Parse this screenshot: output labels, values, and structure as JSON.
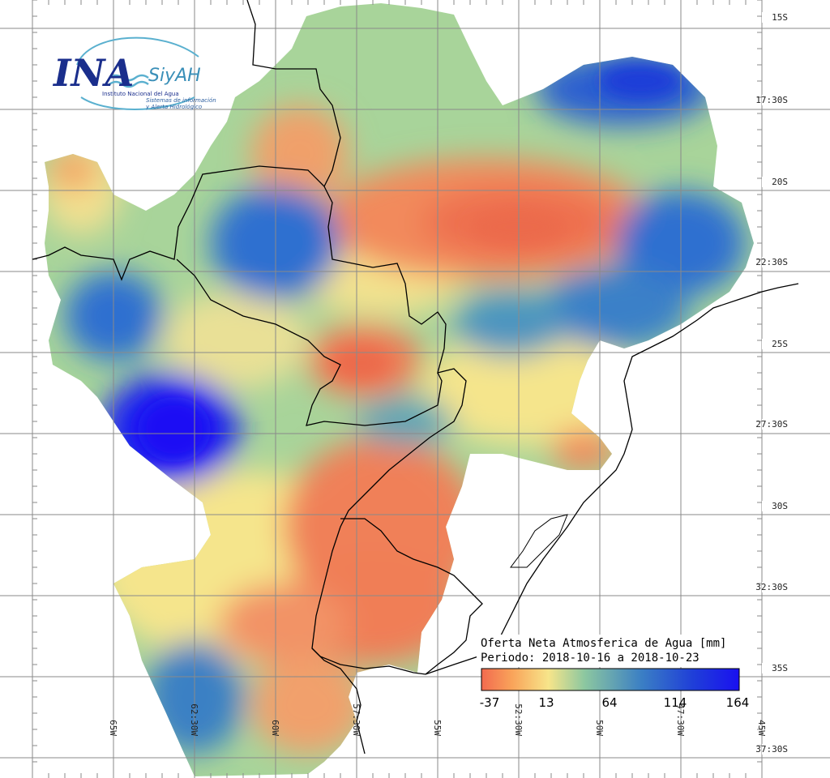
{
  "logo": {
    "name": "INA",
    "product": "SiyAH",
    "institute": "Instituto Nacional del Agua",
    "tagline_1": "Sistemas de información",
    "tagline_2": "y Alerta Hidrológico"
  },
  "title_line1": "Oferta Neta Atmosferica de Agua [mm]",
  "title_line2": "Periodo: 2018-10-16 a 2018-10-23",
  "colorbar": {
    "ticks": [
      "-37",
      "13",
      "64",
      "114",
      "164"
    ],
    "colors": [
      "#f26a4f",
      "#f9a45a",
      "#f7e58a",
      "#8cc7a0",
      "#3b7fc4",
      "#1f3fd8",
      "#1a10f0"
    ]
  },
  "lat_labels": [
    "15S",
    "17:30S",
    "20S",
    "22:30S",
    "25S",
    "27:30S",
    "30S",
    "32:30S",
    "35S",
    "37:30S"
  ],
  "lon_labels": [
    "65W",
    "62:30W",
    "60W",
    "57:30W",
    "55W",
    "52:30W",
    "50W",
    "47:30W",
    "45W"
  ],
  "colors": {
    "high": "#1a10f0",
    "wet": "#2f6fd0",
    "mid": "#8cc7a0",
    "neutral": "#f5e58c",
    "dry": "#f07a55",
    "grid": "#8a8a8a",
    "border": "#000000"
  }
}
